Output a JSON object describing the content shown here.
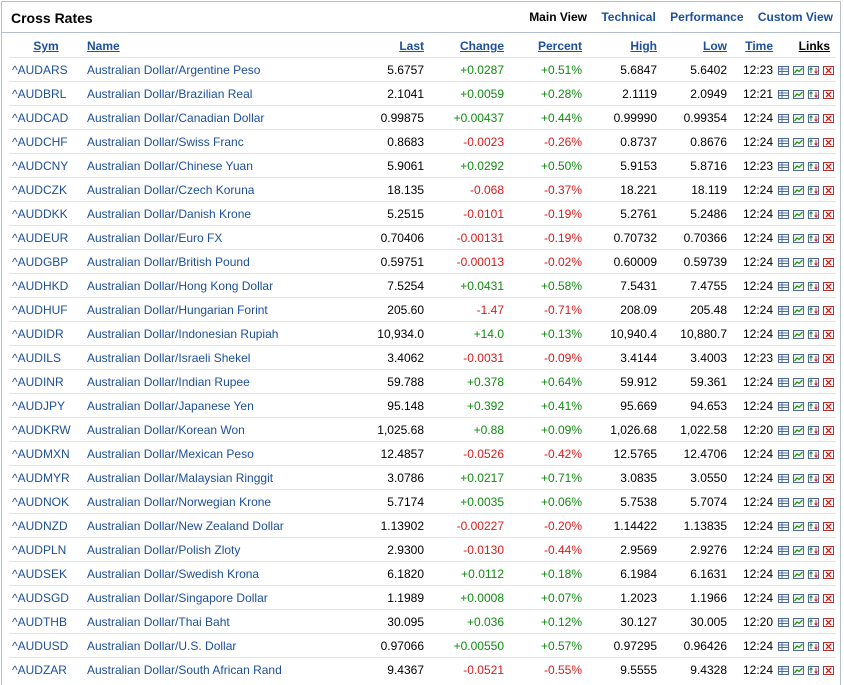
{
  "header": {
    "title": "Cross Rates",
    "views": [
      {
        "label": "Main View",
        "active": true
      },
      {
        "label": "Technical",
        "active": false
      },
      {
        "label": "Performance",
        "active": false
      },
      {
        "label": "Custom View",
        "active": false
      }
    ]
  },
  "columns": {
    "sym": "Sym",
    "name": "Name",
    "last": "Last",
    "change": "Change",
    "percent": "Percent",
    "high": "High",
    "low": "Low",
    "time": "Time",
    "links": "Links"
  },
  "colors": {
    "positive": "#118a11",
    "negative": "#d81c1c",
    "link": "#1c4f9c"
  },
  "link_icons": [
    "quote-table-icon",
    "chart-icon",
    "options-icon",
    "delete-icon"
  ],
  "rows": [
    {
      "sym": "^AUDARS",
      "name": "Australian Dollar/Argentine Peso",
      "last": "5.6757",
      "change": "+0.0287",
      "percent": "+0.51%",
      "high": "5.6847",
      "low": "5.6402",
      "time": "12:23"
    },
    {
      "sym": "^AUDBRL",
      "name": "Australian Dollar/Brazilian Real",
      "last": "2.1041",
      "change": "+0.0059",
      "percent": "+0.28%",
      "high": "2.1119",
      "low": "2.0949",
      "time": "12:21"
    },
    {
      "sym": "^AUDCAD",
      "name": "Australian Dollar/Canadian Dollar",
      "last": "0.99875",
      "change": "+0.00437",
      "percent": "+0.44%",
      "high": "0.99990",
      "low": "0.99354",
      "time": "12:24"
    },
    {
      "sym": "^AUDCHF",
      "name": "Australian Dollar/Swiss Franc",
      "last": "0.8683",
      "change": "-0.0023",
      "percent": "-0.26%",
      "high": "0.8737",
      "low": "0.8676",
      "time": "12:24"
    },
    {
      "sym": "^AUDCNY",
      "name": "Australian Dollar/Chinese Yuan",
      "last": "5.9061",
      "change": "+0.0292",
      "percent": "+0.50%",
      "high": "5.9153",
      "low": "5.8716",
      "time": "12:23"
    },
    {
      "sym": "^AUDCZK",
      "name": "Australian Dollar/Czech Koruna",
      "last": "18.135",
      "change": "-0.068",
      "percent": "-0.37%",
      "high": "18.221",
      "low": "18.119",
      "time": "12:24"
    },
    {
      "sym": "^AUDDKK",
      "name": "Australian Dollar/Danish Krone",
      "last": "5.2515",
      "change": "-0.0101",
      "percent": "-0.19%",
      "high": "5.2761",
      "low": "5.2486",
      "time": "12:24"
    },
    {
      "sym": "^AUDEUR",
      "name": "Australian Dollar/Euro FX",
      "last": "0.70406",
      "change": "-0.00131",
      "percent": "-0.19%",
      "high": "0.70732",
      "low": "0.70366",
      "time": "12:24"
    },
    {
      "sym": "^AUDGBP",
      "name": "Australian Dollar/British Pound",
      "last": "0.59751",
      "change": "-0.00013",
      "percent": "-0.02%",
      "high": "0.60009",
      "low": "0.59739",
      "time": "12:24"
    },
    {
      "sym": "^AUDHKD",
      "name": "Australian Dollar/Hong Kong Dollar",
      "last": "7.5254",
      "change": "+0.0431",
      "percent": "+0.58%",
      "high": "7.5431",
      "low": "7.4755",
      "time": "12:24"
    },
    {
      "sym": "^AUDHUF",
      "name": "Australian Dollar/Hungarian Forint",
      "last": "205.60",
      "change": "-1.47",
      "percent": "-0.71%",
      "high": "208.09",
      "low": "205.48",
      "time": "12:24"
    },
    {
      "sym": "^AUDIDR",
      "name": "Australian Dollar/Indonesian Rupiah",
      "last": "10,934.0",
      "change": "+14.0",
      "percent": "+0.13%",
      "high": "10,940.4",
      "low": "10,880.7",
      "time": "12:24"
    },
    {
      "sym": "^AUDILS",
      "name": "Australian Dollar/Israeli Shekel",
      "last": "3.4062",
      "change": "-0.0031",
      "percent": "-0.09%",
      "high": "3.4144",
      "low": "3.4003",
      "time": "12:23"
    },
    {
      "sym": "^AUDINR",
      "name": "Australian Dollar/Indian Rupee",
      "last": "59.788",
      "change": "+0.378",
      "percent": "+0.64%",
      "high": "59.912",
      "low": "59.361",
      "time": "12:24"
    },
    {
      "sym": "^AUDJPY",
      "name": "Australian Dollar/Japanese Yen",
      "last": "95.148",
      "change": "+0.392",
      "percent": "+0.41%",
      "high": "95.669",
      "low": "94.653",
      "time": "12:24"
    },
    {
      "sym": "^AUDKRW",
      "name": "Australian Dollar/Korean Won",
      "last": "1,025.68",
      "change": "+0.88",
      "percent": "+0.09%",
      "high": "1,026.68",
      "low": "1,022.58",
      "time": "12:20"
    },
    {
      "sym": "^AUDMXN",
      "name": "Australian Dollar/Mexican Peso",
      "last": "12.4857",
      "change": "-0.0526",
      "percent": "-0.42%",
      "high": "12.5765",
      "low": "12.4706",
      "time": "12:24"
    },
    {
      "sym": "^AUDMYR",
      "name": "Australian Dollar/Malaysian Ringgit",
      "last": "3.0786",
      "change": "+0.0217",
      "percent": "+0.71%",
      "high": "3.0835",
      "low": "3.0550",
      "time": "12:24"
    },
    {
      "sym": "^AUDNOK",
      "name": "Australian Dollar/Norwegian Krone",
      "last": "5.7174",
      "change": "+0.0035",
      "percent": "+0.06%",
      "high": "5.7538",
      "low": "5.7074",
      "time": "12:24"
    },
    {
      "sym": "^AUDNZD",
      "name": "Australian Dollar/New Zealand Dollar",
      "last": "1.13902",
      "change": "-0.00227",
      "percent": "-0.20%",
      "high": "1.14422",
      "low": "1.13835",
      "time": "12:24"
    },
    {
      "sym": "^AUDPLN",
      "name": "Australian Dollar/Polish Zloty",
      "last": "2.9300",
      "change": "-0.0130",
      "percent": "-0.44%",
      "high": "2.9569",
      "low": "2.9276",
      "time": "12:24"
    },
    {
      "sym": "^AUDSEK",
      "name": "Australian Dollar/Swedish Krona",
      "last": "6.1820",
      "change": "+0.0112",
      "percent": "+0.18%",
      "high": "6.1984",
      "low": "6.1631",
      "time": "12:24"
    },
    {
      "sym": "^AUDSGD",
      "name": "Australian Dollar/Singapore Dollar",
      "last": "1.1989",
      "change": "+0.0008",
      "percent": "+0.07%",
      "high": "1.2023",
      "low": "1.1966",
      "time": "12:24"
    },
    {
      "sym": "^AUDTHB",
      "name": "Australian Dollar/Thai Baht",
      "last": "30.095",
      "change": "+0.036",
      "percent": "+0.12%",
      "high": "30.127",
      "low": "30.005",
      "time": "12:20"
    },
    {
      "sym": "^AUDUSD",
      "name": "Australian Dollar/U.S. Dollar",
      "last": "0.97066",
      "change": "+0.00550",
      "percent": "+0.57%",
      "high": "0.97295",
      "low": "0.96426",
      "time": "12:24"
    },
    {
      "sym": "^AUDZAR",
      "name": "Australian Dollar/South African Rand",
      "last": "9.4367",
      "change": "-0.0521",
      "percent": "-0.55%",
      "high": "9.5555",
      "low": "9.4328",
      "time": "12:24"
    }
  ]
}
